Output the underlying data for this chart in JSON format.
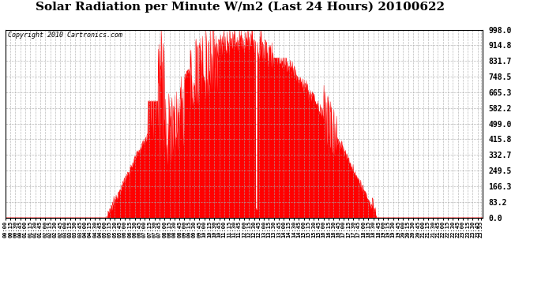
{
  "title": "Solar Radiation per Minute W/m2 (Last 24 Hours) 20100622",
  "copyright": "Copyright 2010 Cartronics.com",
  "yticks": [
    0.0,
    83.2,
    166.3,
    249.5,
    332.7,
    415.8,
    499.0,
    582.2,
    665.3,
    748.5,
    831.7,
    914.8,
    998.0
  ],
  "ymin": 0.0,
  "ymax": 998.0,
  "fill_color": "#ff0000",
  "line_color": "#ff0000",
  "bg_color": "#ffffff",
  "grid_color": "#aaaaaa",
  "dashed_line_color": "#ff0000",
  "title_fontsize": 11,
  "copyright_fontsize": 6,
  "tick_label_fontsize": 7,
  "xtick_fontsize": 5,
  "sunrise_min": 305,
  "sunset_min": 1120,
  "peak_min": 771,
  "max_val": 998.0
}
